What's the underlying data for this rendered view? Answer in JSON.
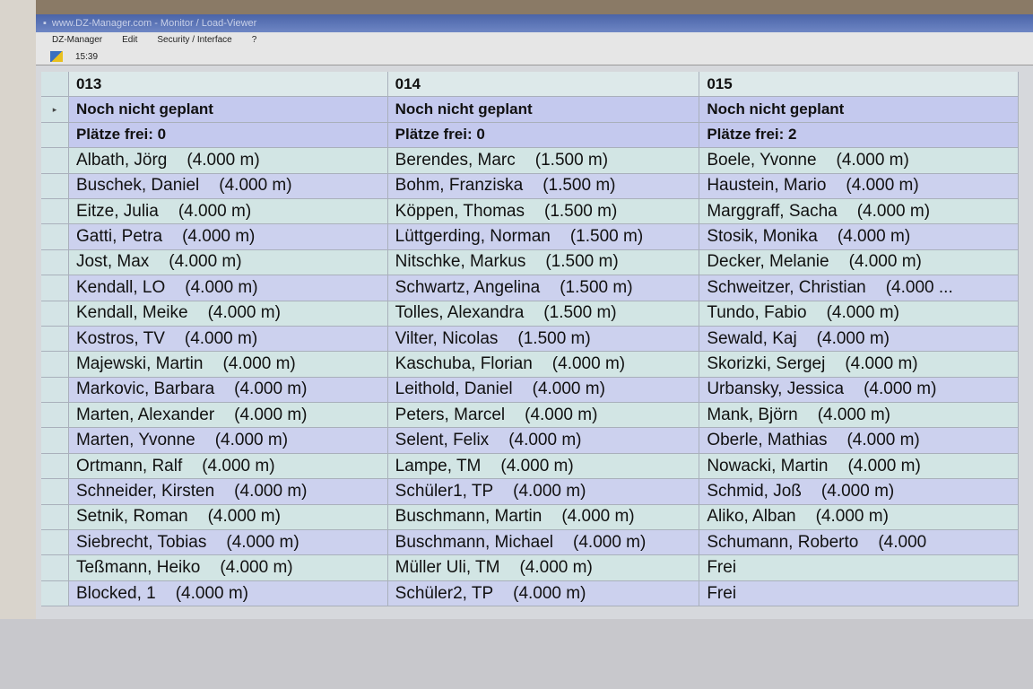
{
  "window": {
    "title": "www.DZ-Manager.com - Monitor / Load-Viewer"
  },
  "menu": [
    "DZ-Manager",
    "Edit",
    "Security / Interface",
    "?"
  ],
  "toolbar": {
    "time": "15:39"
  },
  "row_indicator": "▸",
  "loads": [
    {
      "number": "013",
      "status": "Noch nicht geplant",
      "seats": "Plätze frei: 0",
      "jumpers": [
        [
          "Albath, Jörg",
          "(4.000 m)"
        ],
        [
          "Buschek, Daniel",
          "(4.000 m)"
        ],
        [
          "Eitze, Julia",
          "(4.000 m)"
        ],
        [
          "Gatti, Petra",
          "(4.000 m)"
        ],
        [
          "Jost, Max",
          "(4.000 m)"
        ],
        [
          "Kendall, LO",
          "(4.000 m)"
        ],
        [
          "Kendall, Meike",
          "(4.000 m)"
        ],
        [
          "Kostros, TV",
          "(4.000 m)"
        ],
        [
          "Majewski, Martin",
          "(4.000 m)"
        ],
        [
          "Markovic, Barbara",
          "(4.000 m)"
        ],
        [
          "Marten, Alexander",
          "(4.000 m)"
        ],
        [
          "Marten, Yvonne",
          "(4.000 m)"
        ],
        [
          "Ortmann, Ralf",
          "(4.000 m)"
        ],
        [
          "Schneider, Kirsten",
          "(4.000 m)"
        ],
        [
          "Setnik, Roman",
          "(4.000 m)"
        ],
        [
          "Siebrecht, Tobias",
          "(4.000 m)"
        ],
        [
          "Teßmann, Heiko",
          "(4.000 m)"
        ],
        [
          "Blocked, 1",
          "(4.000 m)"
        ]
      ]
    },
    {
      "number": "014",
      "status": "Noch nicht geplant",
      "seats": "Plätze frei: 0",
      "jumpers": [
        [
          "Berendes, Marc",
          "(1.500 m)"
        ],
        [
          "Bohm, Franziska",
          "(1.500 m)"
        ],
        [
          "Köppen, Thomas",
          "(1.500 m)"
        ],
        [
          "Lüttgerding, Norman",
          "(1.500 m)"
        ],
        [
          "Nitschke, Markus",
          "(1.500 m)"
        ],
        [
          "Schwartz, Angelina",
          "(1.500 m)"
        ],
        [
          "Tolles, Alexandra",
          "(1.500 m)"
        ],
        [
          "Vilter, Nicolas",
          "(1.500 m)"
        ],
        [
          "Kaschuba, Florian",
          "(4.000 m)"
        ],
        [
          "Leithold, Daniel",
          "(4.000 m)"
        ],
        [
          "Peters, Marcel",
          "(4.000 m)"
        ],
        [
          "Selent, Felix",
          "(4.000 m)"
        ],
        [
          "Lampe, TM",
          "(4.000 m)"
        ],
        [
          "Schüler1, TP",
          "(4.000 m)"
        ],
        [
          "Buschmann, Martin",
          "(4.000 m)"
        ],
        [
          "Buschmann, Michael",
          "(4.000 m)"
        ],
        [
          "Müller Uli, TM",
          "(4.000 m)"
        ],
        [
          "Schüler2, TP",
          "(4.000 m)"
        ]
      ]
    },
    {
      "number": "015",
      "status": "Noch nicht geplant",
      "seats": "Plätze frei: 2",
      "jumpers": [
        [
          "Boele, Yvonne",
          "(4.000 m)"
        ],
        [
          "Haustein, Mario",
          "(4.000 m)"
        ],
        [
          "Marggraff, Sacha",
          "(4.000 m)"
        ],
        [
          "Stosik, Monika",
          "(4.000 m)"
        ],
        [
          "Decker, Melanie",
          "(4.000 m)"
        ],
        [
          "Schweitzer, Christian",
          "(4.000 ..."
        ],
        [
          "Tundo, Fabio",
          "(4.000 m)"
        ],
        [
          "Sewald, Kaj",
          "(4.000 m)"
        ],
        [
          "Skorizki, Sergej",
          "(4.000 m)"
        ],
        [
          "Urbansky, Jessica",
          "(4.000 m)"
        ],
        [
          "Mank, Björn",
          "(4.000 m)"
        ],
        [
          "Oberle, Mathias",
          "(4.000 m)"
        ],
        [
          "Nowacki, Martin",
          "(4.000 m)"
        ],
        [
          "Schmid, Joß",
          "(4.000 m)"
        ],
        [
          "Aliko, Alban",
          "(4.000 m)"
        ],
        [
          "Schumann, Roberto",
          "(4.000"
        ],
        [
          "Frei",
          ""
        ],
        [
          "Frei",
          ""
        ]
      ]
    }
  ]
}
